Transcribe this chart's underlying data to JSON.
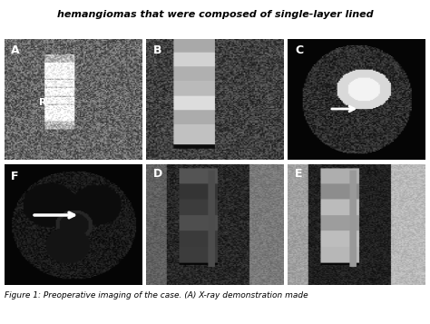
{
  "figure_width": 4.74,
  "figure_height": 3.57,
  "dpi": 100,
  "bg_color": "#ffffff",
  "panels": [
    "A",
    "B",
    "C",
    "D",
    "E",
    "F"
  ],
  "panel_label_color": "#ffffff",
  "panel_label_fontsize": 9,
  "panel_label_fontweight": "bold",
  "caption": "Figure 1: Preoperative imaging of the case. (A) X-ray demonstration made",
  "caption_fontsize": 6.5,
  "caption_color": "#000000",
  "title_text": "hemangiomas that were composed of single-layer lined",
  "title_fontsize": 8,
  "title_color": "#000000",
  "arrow_color": "#ffffff",
  "R_label": "R",
  "R_label_color": "#ffffff",
  "R_fontsize": 8
}
